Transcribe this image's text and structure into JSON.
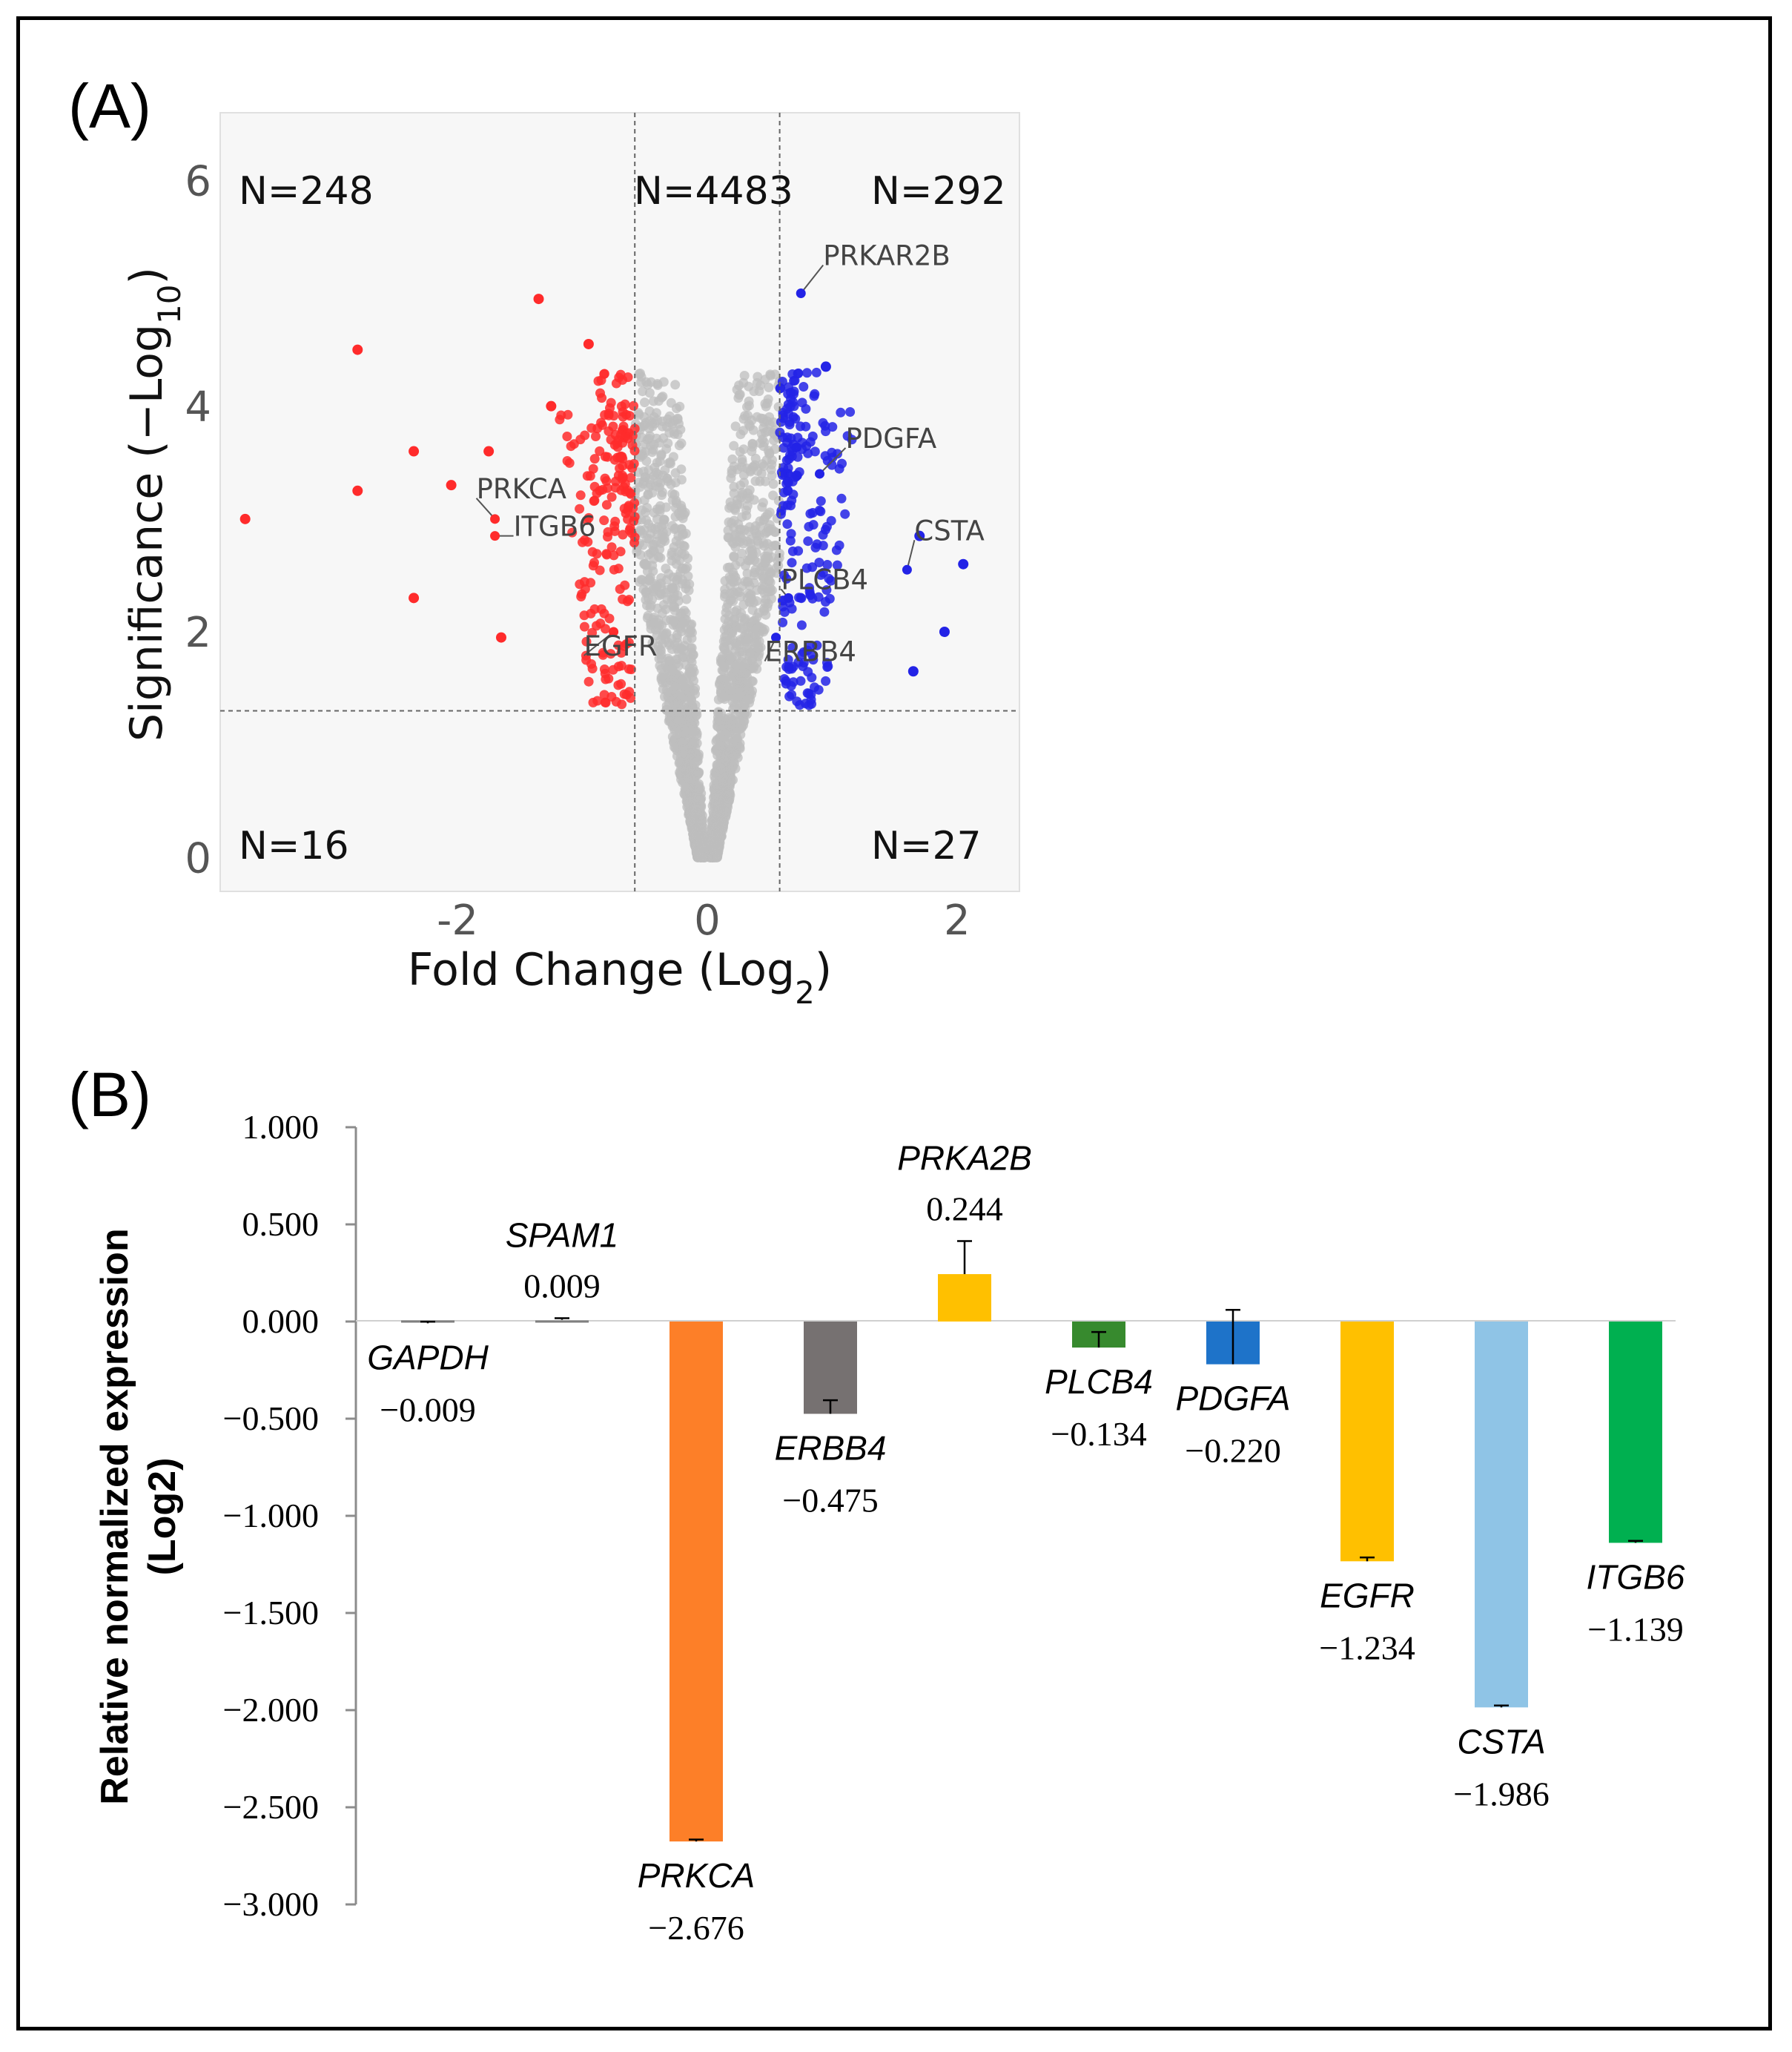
{
  "chart_data": [
    {
      "panel_label": "(A)",
      "type": "scatter",
      "subtype": "volcano",
      "xlabel": "Fold Change (Log",
      "xlabel_sub": "2",
      "xlabel_end": ")",
      "ylabel": "Significance (−Log",
      "ylabel_sub": "10",
      "ylabel_end": ")",
      "xlim": [
        -3.9,
        2.5
      ],
      "ylim": [
        -0.3,
        6.6
      ],
      "xticks": [
        -2,
        0,
        2
      ],
      "xtick_labels": [
        "-2",
        "0",
        "2"
      ],
      "yticks": [
        0,
        2,
        4,
        6
      ],
      "ytick_labels": [
        "0",
        "2",
        "4",
        "6"
      ],
      "fc_threshold": [
        -0.58,
        0.58
      ],
      "sig_threshold": 1.3,
      "regions": [
        {
          "id": "up-left",
          "label": "N=248",
          "position": "top-left"
        },
        {
          "id": "up-center",
          "label": "N=4483",
          "position": "top-center"
        },
        {
          "id": "up-right",
          "label": "N=292",
          "position": "top-right"
        },
        {
          "id": "down-left",
          "label": "N=16",
          "position": "bottom-left"
        },
        {
          "id": "down-right",
          "label": "N=27",
          "position": "bottom-right"
        }
      ],
      "colors": {
        "down": "#ff2b2b",
        "ns": "#bdbdbd",
        "up": "#2323e6"
      },
      "highlighted_points": [
        {
          "x": -3.7,
          "y": 3.0,
          "group": "down"
        },
        {
          "x": -2.8,
          "y": 4.5,
          "group": "down"
        },
        {
          "x": -2.8,
          "y": 3.25,
          "group": "down"
        },
        {
          "x": -2.35,
          "y": 3.6,
          "group": "down"
        },
        {
          "x": -2.35,
          "y": 2.3,
          "group": "down"
        },
        {
          "x": -2.05,
          "y": 3.3,
          "group": "down"
        },
        {
          "x": -1.75,
          "y": 3.6,
          "group": "down"
        },
        {
          "x": -1.65,
          "y": 1.95,
          "group": "down"
        },
        {
          "x": -1.35,
          "y": 4.95,
          "group": "down"
        },
        {
          "x": -0.95,
          "y": 4.55,
          "group": "down"
        },
        {
          "x": -1.25,
          "y": 4.0,
          "group": "down"
        },
        {
          "x": 0.95,
          "y": 4.35,
          "group": "up"
        },
        {
          "x": 1.7,
          "y": 2.85,
          "group": "up"
        },
        {
          "x": 2.05,
          "y": 2.6,
          "group": "up"
        },
        {
          "x": 1.9,
          "y": 2.0,
          "group": "up"
        },
        {
          "x": 1.65,
          "y": 1.65,
          "group": "up"
        }
      ],
      "labeled_genes": [
        {
          "name": "PRKAR2B",
          "x": 0.75,
          "y": 5.0
        },
        {
          "name": "PDGFA",
          "x": 0.9,
          "y": 3.4
        },
        {
          "name": "PRKCA",
          "x": -1.7,
          "y": 3.0
        },
        {
          "name": "ITGB6",
          "x": -1.7,
          "y": 2.85
        },
        {
          "name": "CSTA",
          "x": 1.6,
          "y": 2.55
        },
        {
          "name": "PLCB4",
          "x": 0.65,
          "y": 2.3
        },
        {
          "name": "ERBB4",
          "x": 0.55,
          "y": 1.95
        },
        {
          "name": "EGFR",
          "x": -0.75,
          "y": 2.0
        }
      ]
    },
    {
      "panel_label": "(B)",
      "type": "bar",
      "ylabel": "Relative normalized expression",
      "ylabel_line2": "(Log2)",
      "ylim": [
        -3.0,
        1.0
      ],
      "yticks": [
        1.0,
        0.5,
        0.0,
        -0.5,
        -1.0,
        -1.5,
        -2.0,
        -2.5,
        -3.0
      ],
      "ytick_labels": [
        "1.000",
        "0.500",
        "0.000",
        "−0.500",
        "−1.000",
        "−1.500",
        "−2.000",
        "−2.500",
        "−3.000"
      ],
      "categories": [
        "GAPDH",
        "SPAM1",
        "PRKCA",
        "ERBB4",
        "PRKA2B",
        "PLCB4",
        "PDGFA",
        "EGFR",
        "CSTA",
        "ITGB6"
      ],
      "values": [
        -0.009,
        0.009,
        -2.676,
        -0.475,
        0.244,
        -0.134,
        -0.22,
        -1.234,
        -1.986,
        -1.139
      ],
      "value_labels": [
        "−0.009",
        "0.009",
        "−2.676",
        "−0.475",
        "0.244",
        "−0.134",
        "−0.220",
        "−1.234",
        "−1.986",
        "−1.139"
      ],
      "error": [
        0.008,
        0.008,
        0.01,
        0.07,
        0.17,
        0.08,
        0.28,
        0.02,
        0.01,
        0.01
      ],
      "colors": [
        "#9e9e9e",
        "#9e9e9e",
        "#fd7f28",
        "#767171",
        "#ffc000",
        "#378a2e",
        "#1e73c9",
        "#ffc000",
        "#8fc4e6",
        "#00b050"
      ]
    }
  ]
}
